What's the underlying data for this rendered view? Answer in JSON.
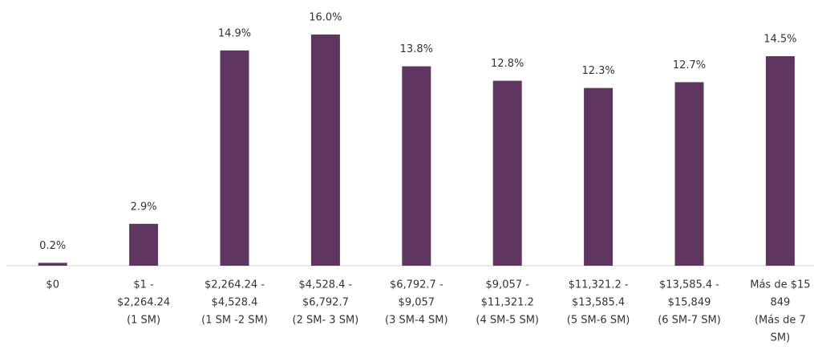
{
  "chart_data": {
    "type": "bar",
    "categories": [
      [
        "$0"
      ],
      [
        "$1 -",
        "$2,264.24",
        "(1 SM)"
      ],
      [
        "$2,264.24 -",
        "$4,528.4",
        "(1 SM -2 SM)"
      ],
      [
        "$4,528.4 -",
        "$6,792.7",
        "(2 SM- 3 SM)"
      ],
      [
        "$6,792.7 -",
        "$9,057",
        "(3 SM-4 SM)"
      ],
      [
        "$9,057 -",
        "$11,321.2",
        "(4 SM-5 SM)"
      ],
      [
        "$11,321.2 -",
        "$13,585.4",
        "(5 SM-6 SM)"
      ],
      [
        "$13,585.4 -",
        "$15,849",
        "(6 SM-7 SM)"
      ],
      [
        "Más de $15",
        "849",
        "(Más de 7",
        "SM)"
      ]
    ],
    "values": [
      0.2,
      2.9,
      14.9,
      16.0,
      13.8,
      12.8,
      12.3,
      12.7,
      14.5
    ],
    "value_labels": [
      "0.2%",
      "2.9%",
      "14.9%",
      "16.0%",
      "13.8%",
      "12.8%",
      "12.3%",
      "12.7%",
      "14.5%"
    ],
    "color": "#5f3660"
  }
}
